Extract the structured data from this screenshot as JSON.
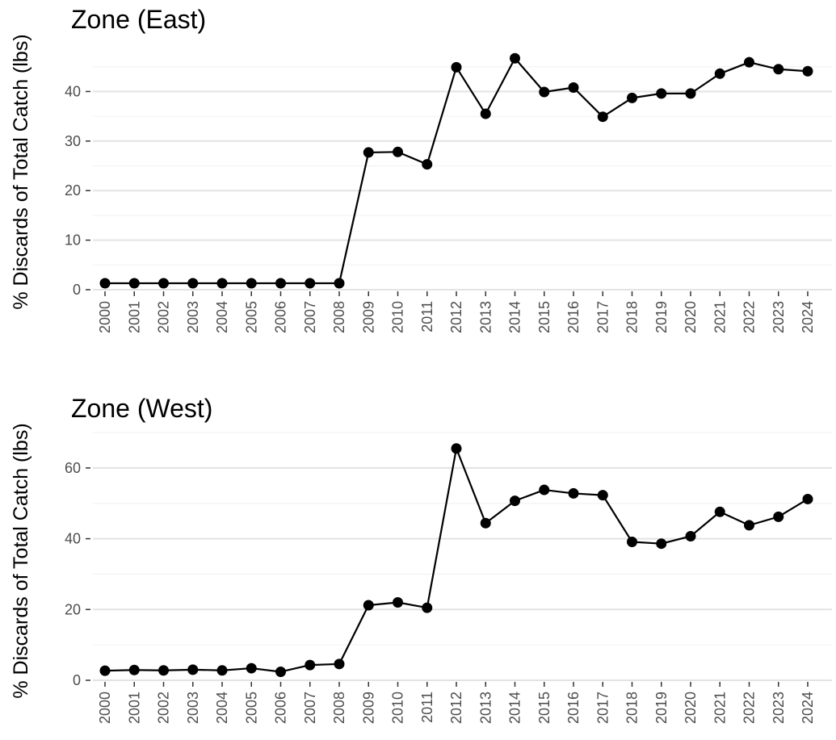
{
  "chart_data": [
    {
      "type": "line",
      "title": "Zone (East)",
      "ylabel": "% Discards of Total Catch (lbs)",
      "xlabel": "",
      "ylim": [
        0,
        50
      ],
      "yticks": [
        0,
        10,
        20,
        30,
        40
      ],
      "x": [
        "2000",
        "2001",
        "2002",
        "2003",
        "2004",
        "2005",
        "2006",
        "2007",
        "2008",
        "2009",
        "2010",
        "2011",
        "2012",
        "2013",
        "2014",
        "2015",
        "2016",
        "2017",
        "2018",
        "2019",
        "2020",
        "2021",
        "2022",
        "2023",
        "2024"
      ],
      "values": [
        1.3,
        1.3,
        1.3,
        1.3,
        1.3,
        1.3,
        1.3,
        1.3,
        1.3,
        27.7,
        27.8,
        25.3,
        44.9,
        35.5,
        46.7,
        39.9,
        40.8,
        34.9,
        38.7,
        39.6,
        39.6,
        43.6,
        45.9,
        44.5,
        44.1
      ],
      "grid": true,
      "legend": "none"
    },
    {
      "type": "line",
      "title": "Zone (West)",
      "ylabel": "% Discards of Total Catch (lbs)",
      "xlabel": "",
      "ylim": [
        0,
        70
      ],
      "yticks": [
        0,
        20,
        40,
        60
      ],
      "x": [
        "2000",
        "2001",
        "2002",
        "2003",
        "2004",
        "2005",
        "2006",
        "2007",
        "2008",
        "2009",
        "2010",
        "2011",
        "2012",
        "2013",
        "2014",
        "2015",
        "2016",
        "2017",
        "2018",
        "2019",
        "2020",
        "2021",
        "2022",
        "2023",
        "2024"
      ],
      "values": [
        2.7,
        2.9,
        2.8,
        3.0,
        2.8,
        3.4,
        2.4,
        4.3,
        4.6,
        21.2,
        22.0,
        20.5,
        65.5,
        44.4,
        50.7,
        53.8,
        52.8,
        52.3,
        39.1,
        38.6,
        40.7,
        47.6,
        43.8,
        46.2,
        51.2
      ],
      "grid": true,
      "legend": "none"
    }
  ]
}
